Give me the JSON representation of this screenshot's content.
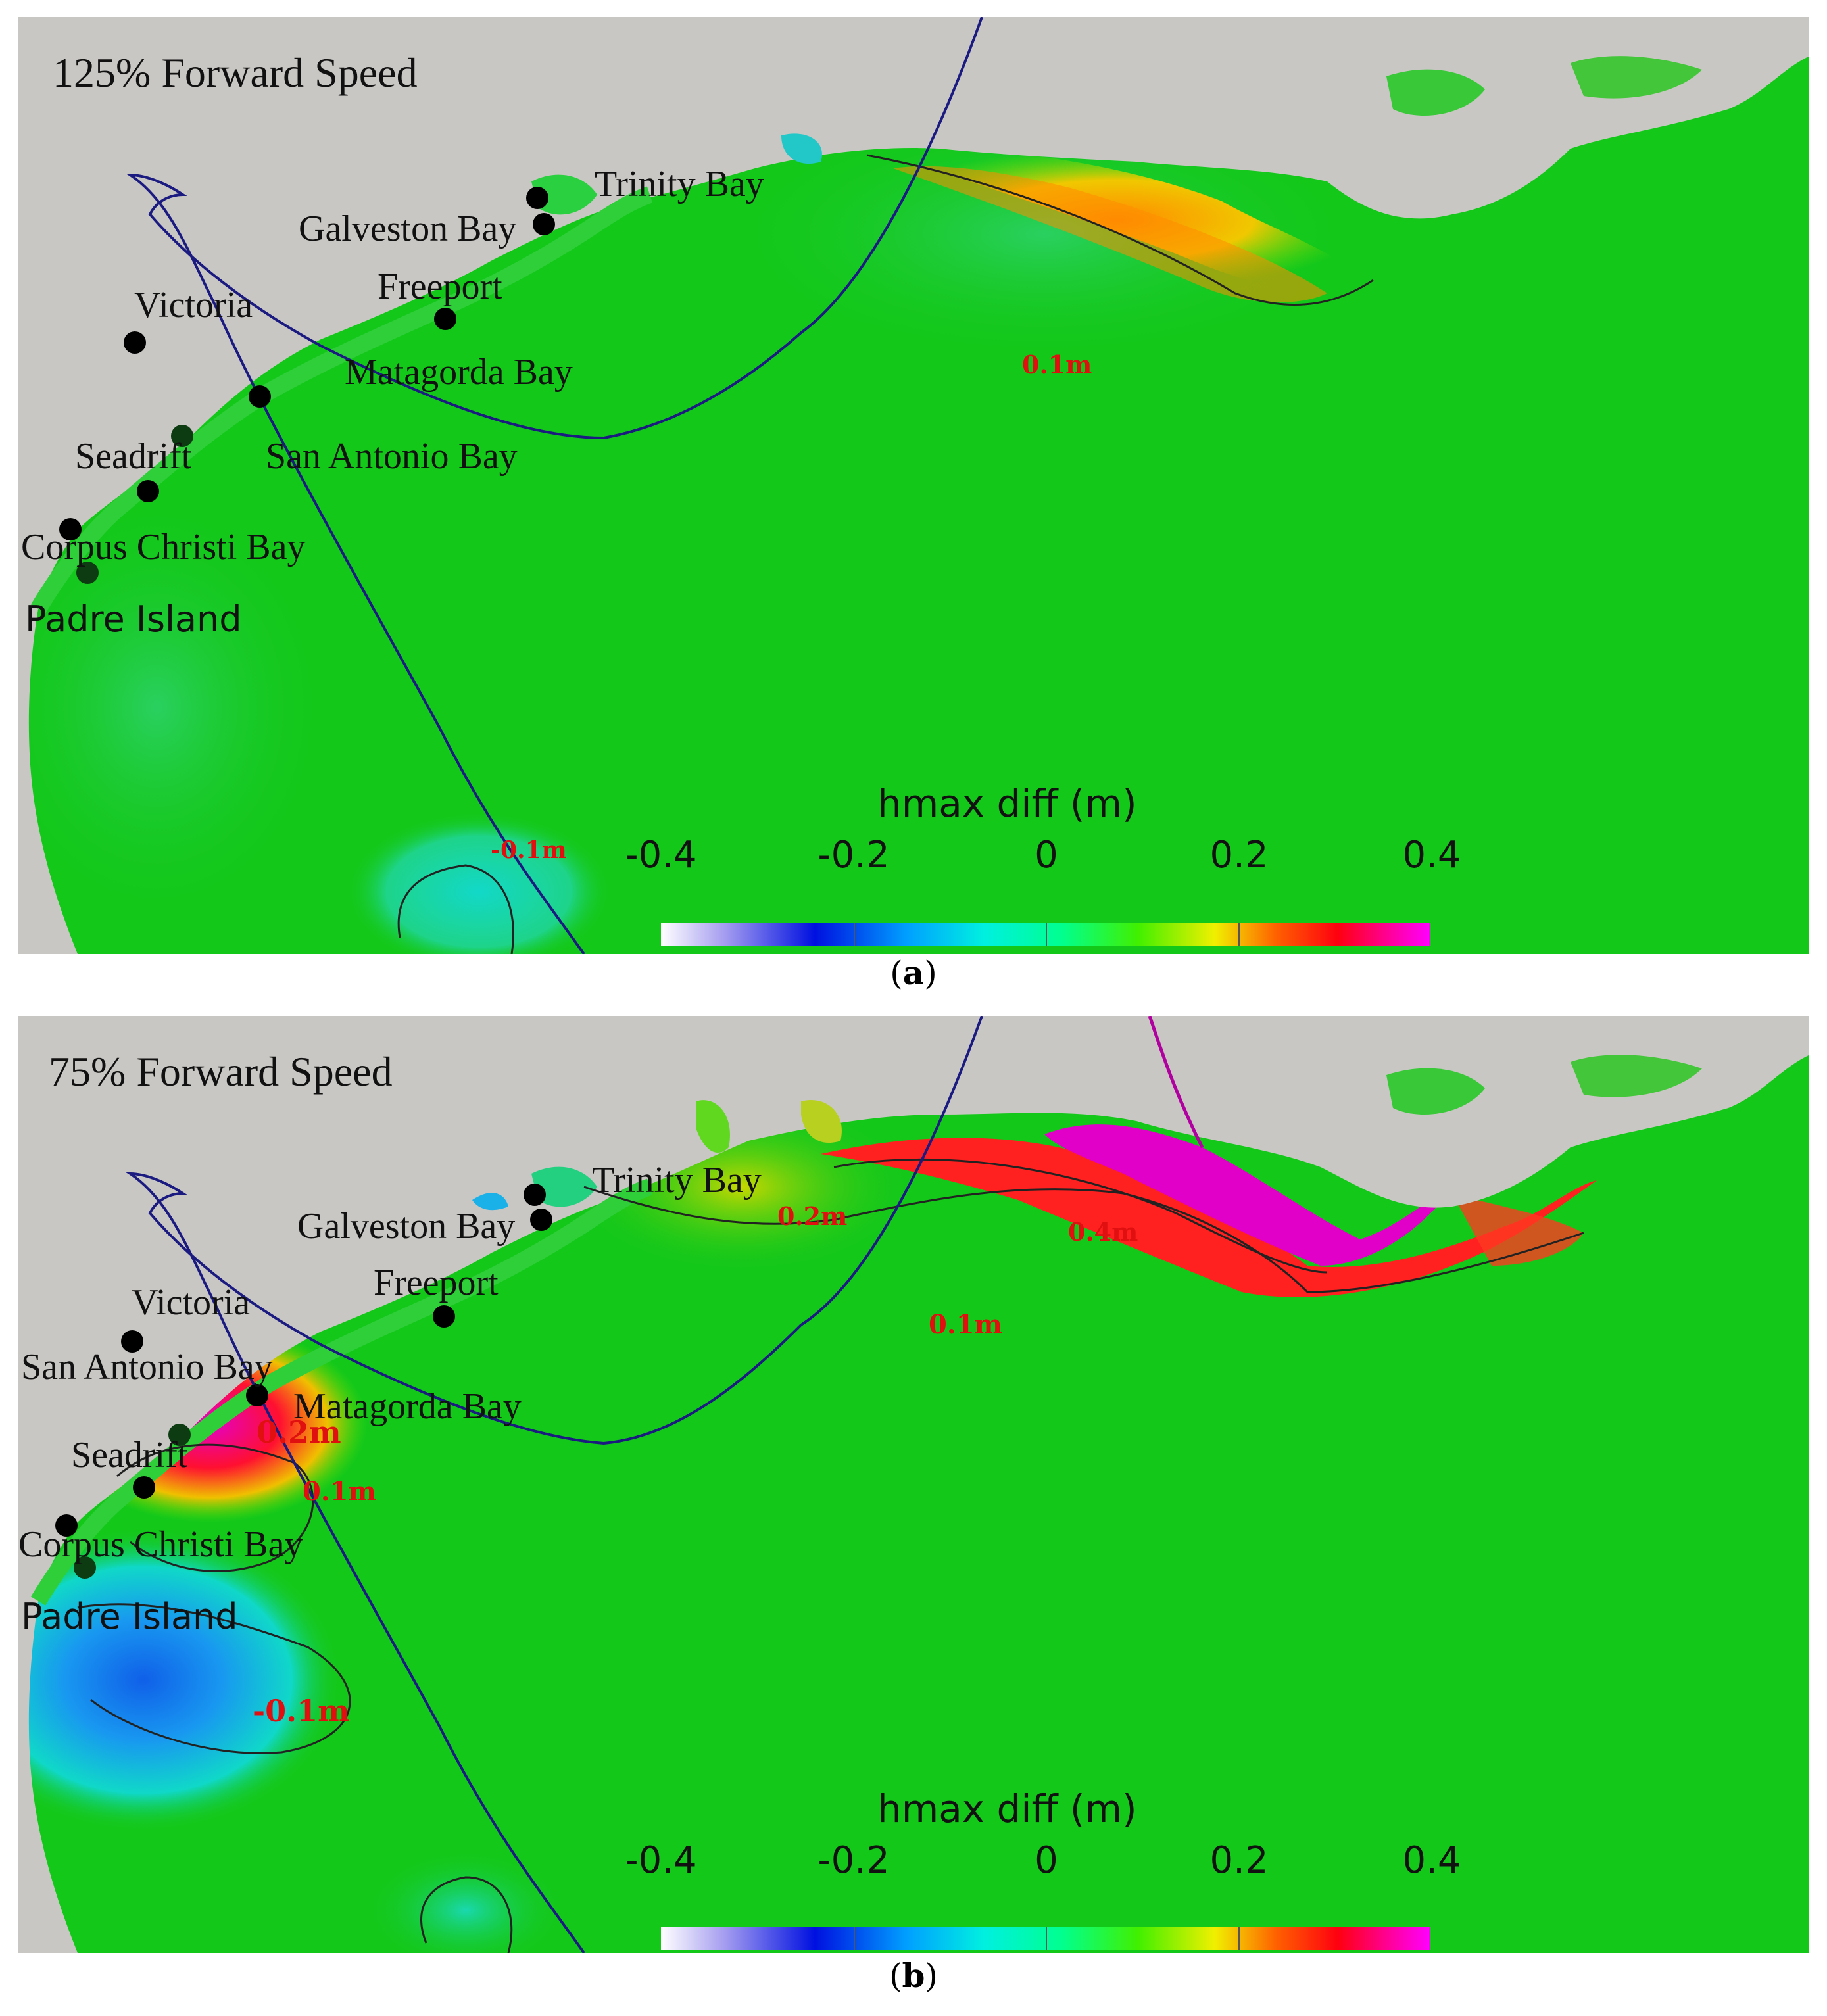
{
  "panels": [
    {
      "id": "a",
      "title": "125% Forward Speed",
      "caption_letter": "a",
      "places": {
        "trinity_bay": "Trinity Bay",
        "galveston_bay": "Galveston Bay",
        "freeport": "Freeport",
        "victoria": "Victoria",
        "matagorda_bay": "Matagorda Bay",
        "seadrift": "Seadrift",
        "san_antonio_bay": "San Antonio Bay",
        "corpus_christi_bay": "Corpus Christi Bay",
        "padre_island": "Padre Island"
      },
      "contour_labels": [
        "0.1m",
        "-0.1m"
      ]
    },
    {
      "id": "b",
      "title": "75% Forward Speed",
      "caption_letter": "b",
      "places": {
        "trinity_bay": "Trinity Bay",
        "galveston_bay": "Galveston Bay",
        "freeport": "Freeport",
        "victoria": "Victoria",
        "san_antonio_bay": "San Antonio Bay",
        "matagorda_bay": "Matagorda Bay",
        "seadrift": "Seadrift",
        "corpus_christi_bay": "Corpus Christi Bay",
        "padre_island": "Padre Island"
      },
      "contour_labels": [
        "0.2m",
        "0.4m",
        "0.1m",
        "0.2m",
        "0.1m",
        "-0.1m"
      ]
    }
  ],
  "legend": {
    "title": "hmax diff (m)",
    "ticks": [
      "-0.4",
      "-0.2",
      "0",
      "0.2",
      "0.4"
    ],
    "range": [
      -0.4,
      0.4
    ],
    "colormap": [
      "#ffffff",
      "#0010e0",
      "#00f0e0",
      "#40f000",
      "#f0f000",
      "#ff0010",
      "#ff00ff"
    ]
  },
  "colors": {
    "land": "#c9c7c3",
    "water_base": "#14c81a",
    "track": "#1a1a80",
    "contour_label": "#e01010"
  }
}
